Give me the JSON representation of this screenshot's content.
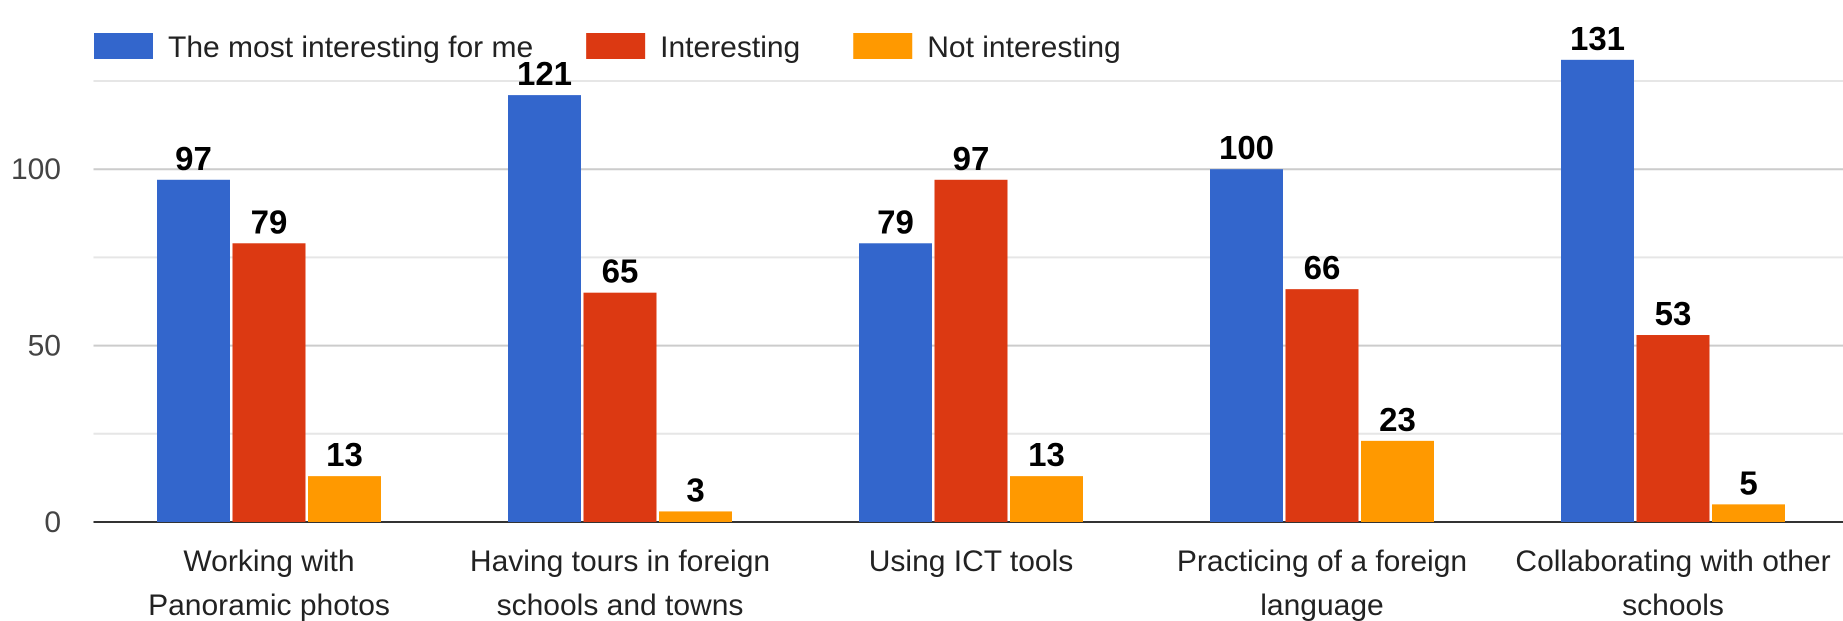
{
  "chart_data": {
    "type": "bar",
    "categories": [
      "Working with Panoramic photos",
      "Having tours in foreign schools and towns",
      "Using ICT tools",
      "Practicing of a foreign language",
      "Collaborating with other schools"
    ],
    "series": [
      {
        "name": "The most interesting for me",
        "color": "#3366cc",
        "values": [
          97,
          121,
          79,
          100,
          131
        ]
      },
      {
        "name": "Interesting",
        "color": "#dc3912",
        "values": [
          79,
          65,
          97,
          66,
          53
        ]
      },
      {
        "name": "Not interesting",
        "color": "#ff9900",
        "values": [
          13,
          3,
          13,
          23,
          5
        ]
      }
    ],
    "ylim": [
      0,
      125
    ],
    "yticks": [
      0,
      50,
      100
    ],
    "minor_yticks": [
      25,
      75,
      125
    ],
    "grid": true,
    "legend": "top"
  }
}
